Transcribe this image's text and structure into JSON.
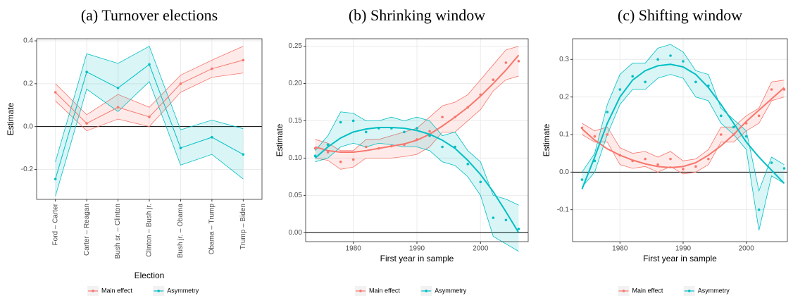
{
  "chart_data": [
    {
      "type": "line",
      "title": "(a) Turnover elections",
      "xlabel": "Election",
      "ylabel": "Estimate",
      "categories": [
        "Ford – Carter",
        "Carter – Reagan",
        "Bush sr. – Clinton",
        "Clinton – Bush jr.",
        "Bush jr. – Obama",
        "Obama – Trump",
        "Trump – Biden"
      ],
      "ylim": [
        -0.34,
        0.41
      ],
      "yticks": [
        -0.2,
        {
          "value": 0,
          "label": "0.0"
        },
        0.2,
        0.4
      ],
      "hline": 0,
      "grid": true,
      "legend": "bottom",
      "series": [
        {
          "name": "Main effect",
          "color": "#F8766D",
          "values": [
            0.16,
            0.015,
            0.09,
            0.045,
            0.2,
            0.27,
            0.31
          ],
          "lower": [
            0.12,
            -0.02,
            0.035,
            0.0,
            0.16,
            0.23,
            0.25
          ],
          "upper": [
            0.2,
            0.055,
            0.15,
            0.09,
            0.24,
            0.31,
            0.375
          ]
        },
        {
          "name": "Asymmetry",
          "color": "#00BFC4",
          "values": [
            -0.245,
            0.255,
            0.18,
            0.29,
            -0.1,
            -0.05,
            -0.13
          ],
          "lower": [
            -0.325,
            0.175,
            0.07,
            0.21,
            -0.18,
            -0.13,
            -0.245
          ],
          "upper": [
            -0.165,
            0.34,
            0.295,
            0.375,
            -0.015,
            0.03,
            -0.01
          ]
        }
      ]
    },
    {
      "type": "line",
      "title": "(b) Shrinking window",
      "xlabel": "First year in sample",
      "ylabel": "Estimate",
      "x": [
        1974,
        1976,
        1978,
        1980,
        1982,
        1984,
        1986,
        1988,
        1990,
        1992,
        1994,
        1996,
        1998,
        2000,
        2002,
        2004,
        2006
      ],
      "xlim": [
        1972.5,
        2007.5
      ],
      "xticks": [
        1980,
        1990,
        2000
      ],
      "ylim": [
        -0.012,
        0.26
      ],
      "yticks": [
        {
          "value": 0,
          "label": "0.00"
        },
        {
          "value": 0.05,
          "label": "0.05"
        },
        {
          "value": 0.1,
          "label": "0.10"
        },
        {
          "value": 0.15,
          "label": "0.15"
        },
        {
          "value": 0.2,
          "label": "0.20"
        },
        {
          "value": 0.25,
          "label": "0.25"
        }
      ],
      "hline": 0,
      "grid": true,
      "legend": "bottom",
      "series": [
        {
          "name": "Main effect",
          "color": "#F8766D",
          "values": [
            0.113,
            0.108,
            0.095,
            0.098,
            0.115,
            0.113,
            0.116,
            0.118,
            0.125,
            0.136,
            0.155,
            0.155,
            0.168,
            0.185,
            0.205,
            0.228,
            0.23
          ],
          "lower": [
            0.1,
            0.097,
            0.085,
            0.088,
            0.1,
            0.1,
            0.1,
            0.102,
            0.105,
            0.115,
            0.135,
            0.135,
            0.15,
            0.165,
            0.19,
            0.205,
            0.21
          ],
          "upper": [
            0.125,
            0.12,
            0.11,
            0.11,
            0.125,
            0.125,
            0.13,
            0.135,
            0.14,
            0.155,
            0.17,
            0.175,
            0.185,
            0.205,
            0.225,
            0.245,
            0.25
          ],
          "smooth": [
            0.115,
            0.11,
            0.108,
            0.108,
            0.11,
            0.113,
            0.116,
            0.119,
            0.124,
            0.132,
            0.143,
            0.155,
            0.168,
            0.183,
            0.2,
            0.218,
            0.238
          ]
        },
        {
          "name": "Asymmetry",
          "color": "#00BFC4",
          "values": [
            0.103,
            0.118,
            0.148,
            0.15,
            0.135,
            0.14,
            0.14,
            0.135,
            0.14,
            0.13,
            0.115,
            0.115,
            0.092,
            0.068,
            0.02,
            0.017,
            0.005
          ],
          "lower": [
            0.095,
            0.1,
            0.115,
            0.12,
            0.115,
            0.12,
            0.118,
            0.115,
            0.115,
            0.11,
            0.095,
            0.09,
            0.075,
            0.05,
            -0.005,
            -0.015,
            -0.025
          ],
          "upper": [
            0.11,
            0.13,
            0.162,
            0.16,
            0.15,
            0.15,
            0.155,
            0.15,
            0.155,
            0.15,
            0.13,
            0.135,
            0.11,
            0.095,
            0.05,
            0.045,
            0.037
          ],
          "smooth": [
            0.1,
            0.115,
            0.127,
            0.135,
            0.139,
            0.141,
            0.141,
            0.14,
            0.137,
            0.132,
            0.124,
            0.113,
            0.097,
            0.078,
            0.055,
            0.028,
            0.0
          ]
        }
      ]
    },
    {
      "type": "line",
      "title": "(c) Shifting window",
      "xlabel": "First year in sample",
      "ylabel": "Estimate",
      "x": [
        1974,
        1976,
        1978,
        1980,
        1982,
        1984,
        1986,
        1988,
        1990,
        1992,
        1994,
        1996,
        1998,
        2000,
        2002,
        2004,
        2006
      ],
      "xlim": [
        1972.5,
        2006.5
      ],
      "xticks": [
        1980,
        1990,
        2000
      ],
      "ylim": [
        -0.185,
        0.355
      ],
      "yticks": [
        -0.1,
        {
          "value": 0,
          "label": "0.0"
        },
        0.1,
        0.2,
        0.3
      ],
      "hline": 0,
      "grid": true,
      "legend": "bottom",
      "series": [
        {
          "name": "Main effect",
          "color": "#F8766D",
          "values": [
            0.118,
            0.095,
            0.1,
            0.045,
            0.03,
            0.035,
            0.02,
            0.035,
            0.008,
            0.015,
            0.035,
            0.1,
            0.1,
            0.13,
            0.15,
            0.22,
            0.22
          ],
          "lower": [
            0.1,
            0.08,
            0.08,
            0.02,
            0.01,
            0.015,
            0.0,
            0.015,
            -0.005,
            0.0,
            0.02,
            0.08,
            0.08,
            0.11,
            0.13,
            0.19,
            0.2
          ],
          "upper": [
            0.13,
            0.11,
            0.12,
            0.065,
            0.05,
            0.055,
            0.04,
            0.055,
            0.03,
            0.035,
            0.06,
            0.12,
            0.12,
            0.15,
            0.17,
            0.24,
            0.245
          ],
          "smooth": [
            0.115,
            0.085,
            0.062,
            0.045,
            0.032,
            0.022,
            0.015,
            0.012,
            0.015,
            0.025,
            0.045,
            0.07,
            0.1,
            0.135,
            0.165,
            0.195,
            0.225
          ]
        },
        {
          "name": "Asymmetry",
          "color": "#00BFC4",
          "values": [
            -0.02,
            0.03,
            0.16,
            0.22,
            0.255,
            0.24,
            0.3,
            0.31,
            0.295,
            0.24,
            0.23,
            0.15,
            0.12,
            0.095,
            -0.1,
            0.025,
            0.01
          ],
          "lower": [
            -0.04,
            0.0,
            0.1,
            0.18,
            0.22,
            0.22,
            0.25,
            0.26,
            0.25,
            0.2,
            0.19,
            0.13,
            0.1,
            0.06,
            -0.155,
            -0.01,
            -0.03
          ],
          "upper": [
            0.0,
            0.05,
            0.18,
            0.26,
            0.29,
            0.29,
            0.33,
            0.34,
            0.32,
            0.27,
            0.26,
            0.17,
            0.14,
            0.11,
            -0.05,
            0.04,
            0.02
          ],
          "smooth": [
            -0.045,
            0.04,
            0.13,
            0.2,
            0.245,
            0.27,
            0.283,
            0.287,
            0.28,
            0.26,
            0.225,
            0.18,
            0.13,
            0.08,
            0.04,
            0.005,
            -0.03
          ]
        }
      ]
    }
  ]
}
